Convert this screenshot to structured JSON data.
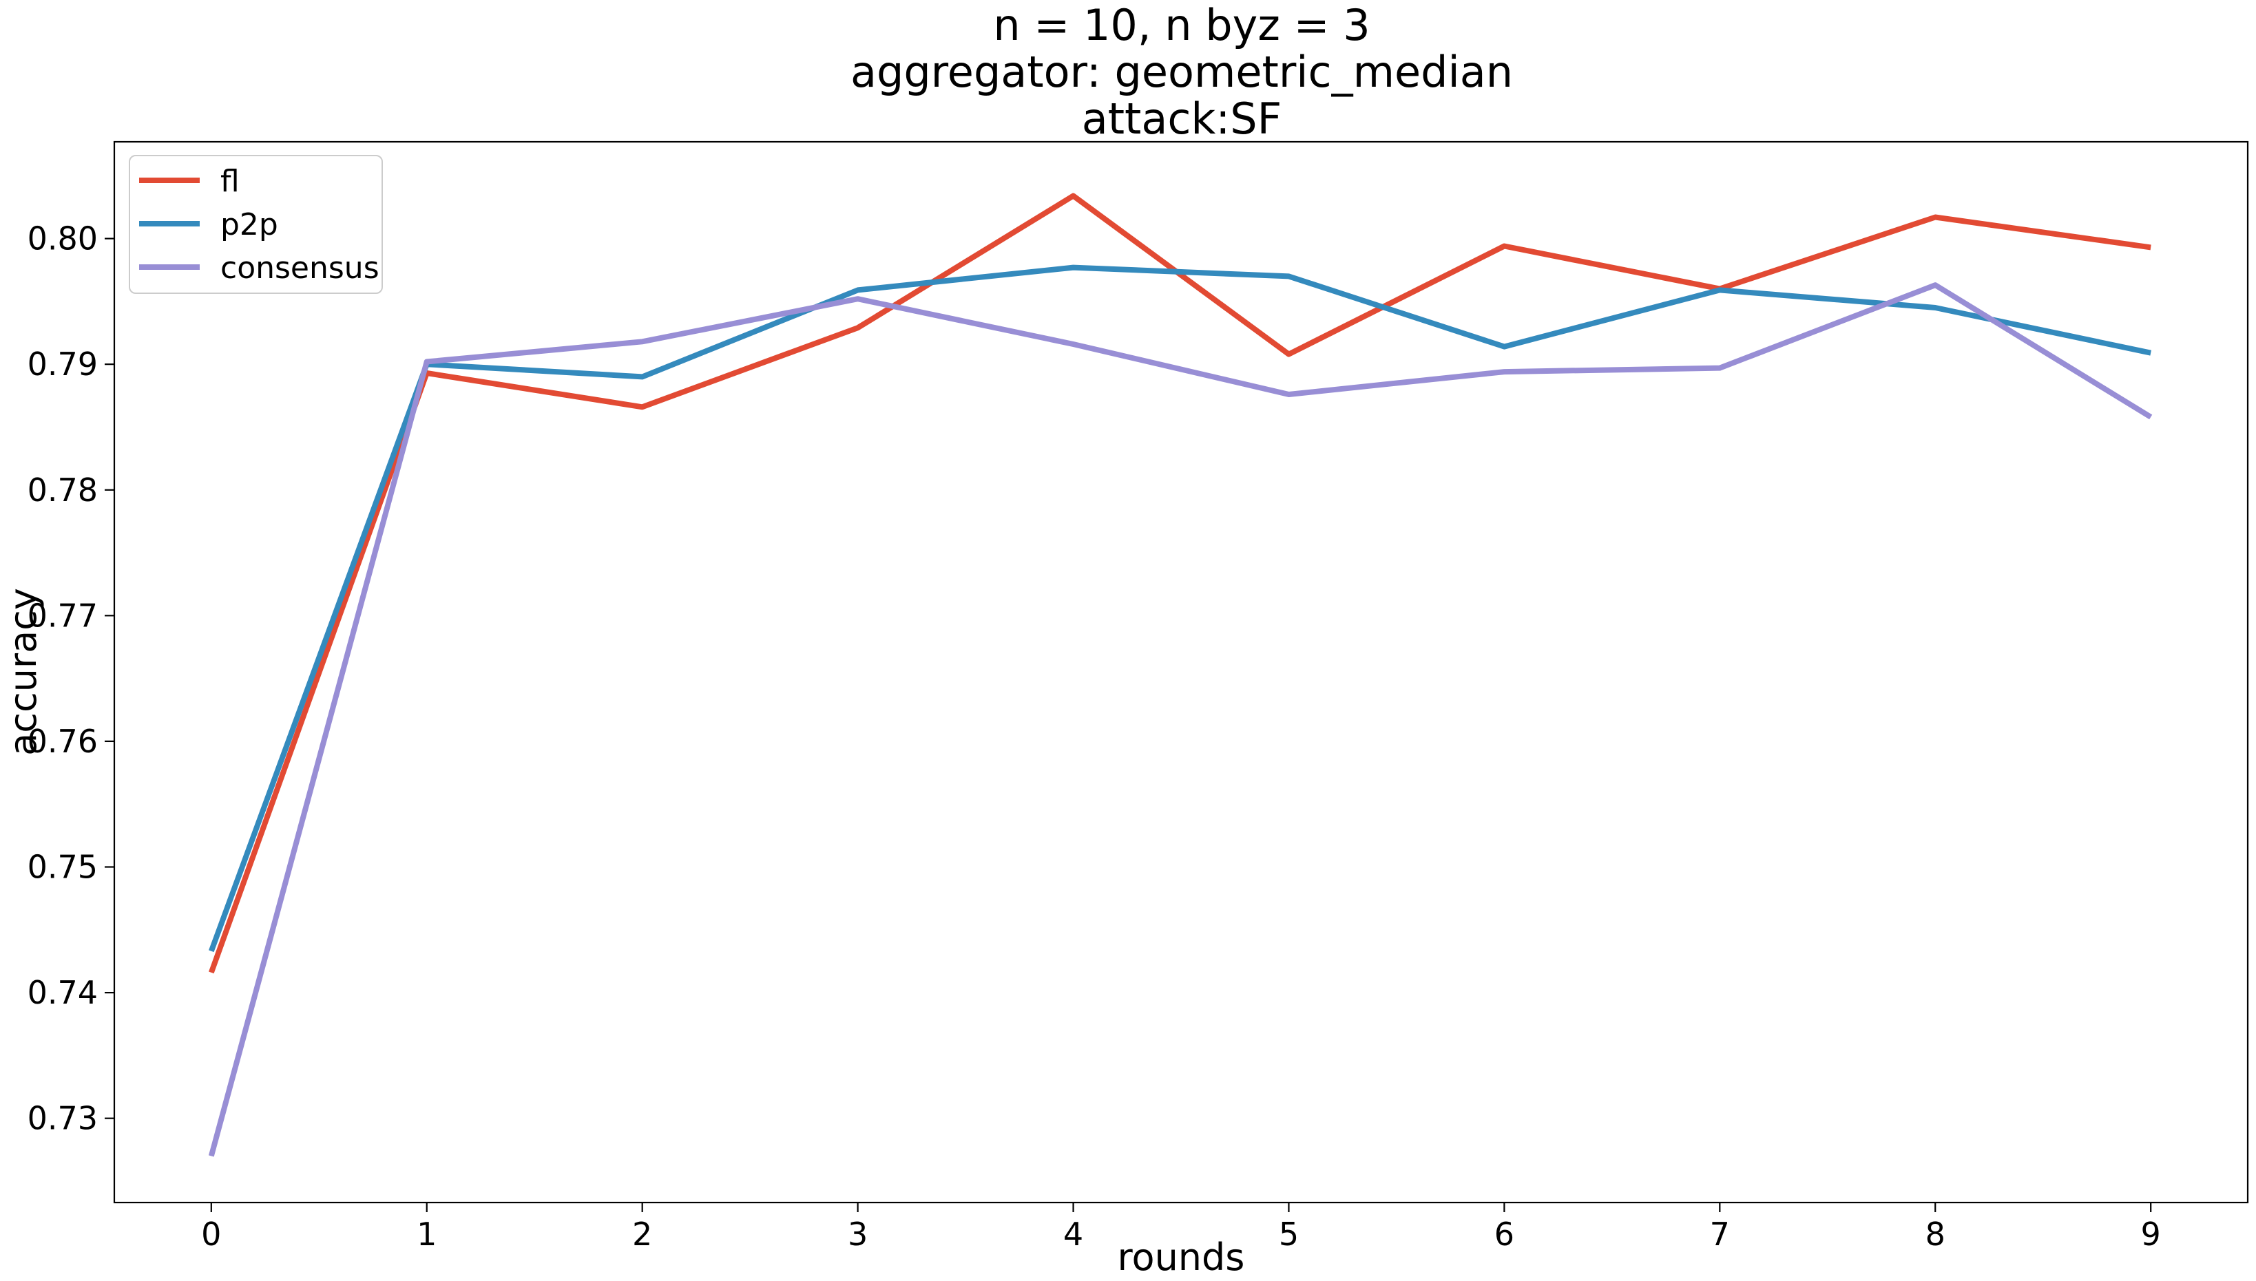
{
  "chart_data": {
    "type": "line",
    "title_lines": [
      "n = 10, n byz = 3",
      "aggregator: geometric_median",
      "attack:SF"
    ],
    "xlabel": "rounds",
    "ylabel": "accuracy",
    "x": [
      0,
      1,
      2,
      3,
      4,
      5,
      6,
      7,
      8,
      9
    ],
    "x_ticks": [
      "0",
      "1",
      "2",
      "3",
      "4",
      "5",
      "6",
      "7",
      "8",
      "9"
    ],
    "y_ticks": [
      "0.73",
      "0.74",
      "0.75",
      "0.76",
      "0.77",
      "0.78",
      "0.79",
      "0.80"
    ],
    "xlim": [
      -0.45,
      9.45
    ],
    "ylim": [
      0.7233,
      0.8077
    ],
    "grid": false,
    "legend_position": "upper-left",
    "series": [
      {
        "name": "fl",
        "color": "#E24A33",
        "values": [
          0.7416,
          0.7893,
          0.7866,
          0.7929,
          0.8034,
          0.7908,
          0.7994,
          0.796,
          0.8017,
          0.7993
        ]
      },
      {
        "name": "p2p",
        "color": "#348ABD",
        "values": [
          0.7433,
          0.79,
          0.789,
          0.7959,
          0.7977,
          0.797,
          0.7914,
          0.7959,
          0.7945,
          0.7909
        ]
      },
      {
        "name": "consensus",
        "color": "#988ED5",
        "values": [
          0.727,
          0.7902,
          0.7918,
          0.7952,
          0.7916,
          0.7876,
          0.7894,
          0.7897,
          0.7963,
          0.7858
        ]
      }
    ]
  }
}
